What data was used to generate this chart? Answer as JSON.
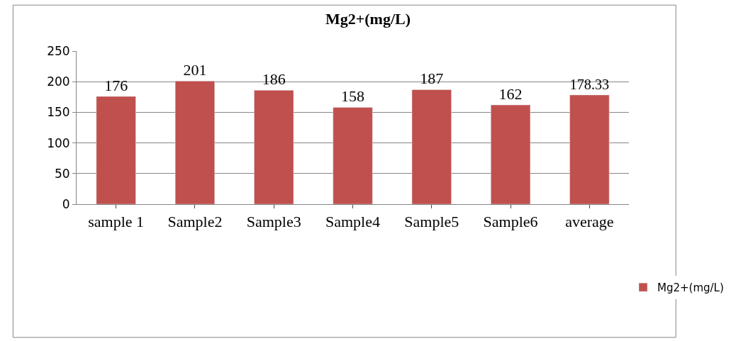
{
  "chart_data": {
    "type": "bar",
    "title": "Mg2+(mg/L)",
    "categories": [
      "sample 1",
      "Sample2",
      "Sample3",
      "Sample4",
      "Sample5",
      "Sample6",
      "average"
    ],
    "series": [
      {
        "name": "Mg2+(mg/L)",
        "color": "#c0504d",
        "values": [
          176,
          201,
          186,
          158,
          187,
          162,
          178.33
        ]
      }
    ],
    "ylim": [
      0,
      250
    ],
    "yticks": [
      0,
      50,
      100,
      150,
      200,
      250
    ],
    "grid": "y",
    "legend": "bottom right",
    "data_labels": true
  }
}
